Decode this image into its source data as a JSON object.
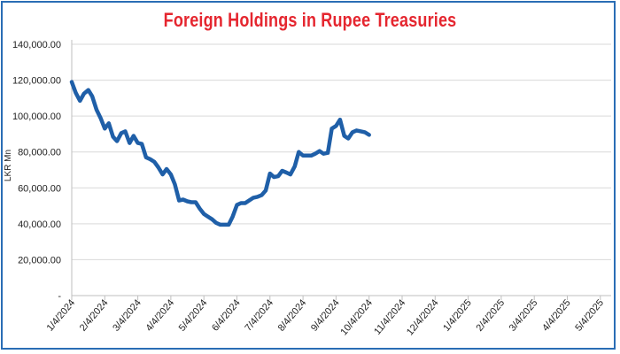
{
  "chart_data": {
    "type": "line",
    "title": "Foreign Holdings in Rupee Treasuries",
    "xlabel": "",
    "ylabel": "LKR Mn",
    "ylim": [
      0,
      140000
    ],
    "y_ticks": [
      0,
      20000,
      40000,
      60000,
      80000,
      100000,
      120000,
      140000
    ],
    "y_tick_labels": [
      "-",
      "20,000.00",
      "40,000.00",
      "60,000.00",
      "80,000.00",
      "100,000.00",
      "120,000.00",
      "140,000.00"
    ],
    "x_tick_labels": [
      "1/4/2024",
      "2/4/2024",
      "3/4/2024",
      "4/4/2024",
      "5/4/2024",
      "6/4/2024",
      "7/4/2024",
      "8/4/2024",
      "9/4/2024",
      "10/4/2024",
      "11/4/2024",
      "12/4/2024",
      "1/4/2025",
      "2/4/2025",
      "3/4/2025",
      "4/4/2025",
      "5/4/2025"
    ],
    "grid": true,
    "line_color": "#1f5fa8",
    "series": [
      {
        "values": [
          [
            0,
            119000
          ],
          [
            0.12,
            113000
          ],
          [
            0.25,
            108500
          ],
          [
            0.37,
            112500
          ],
          [
            0.5,
            114500
          ],
          [
            0.62,
            111000
          ],
          [
            0.75,
            103500
          ],
          [
            0.87,
            99000
          ],
          [
            1.0,
            93000
          ],
          [
            1.12,
            96000
          ],
          [
            1.25,
            88500
          ],
          [
            1.37,
            86000
          ],
          [
            1.5,
            90500
          ],
          [
            1.62,
            91500
          ],
          [
            1.75,
            85000
          ],
          [
            1.87,
            89000
          ],
          [
            2.0,
            85000
          ],
          [
            2.12,
            84500
          ],
          [
            2.25,
            77000
          ],
          [
            2.37,
            76000
          ],
          [
            2.5,
            74500
          ],
          [
            2.62,
            71500
          ],
          [
            2.75,
            67500
          ],
          [
            2.87,
            70500
          ],
          [
            3.0,
            67500
          ],
          [
            3.12,
            62000
          ],
          [
            3.25,
            53000
          ],
          [
            3.37,
            53500
          ],
          [
            3.5,
            52500
          ],
          [
            3.62,
            52000
          ],
          [
            3.75,
            52000
          ],
          [
            3.87,
            48500
          ],
          [
            4.0,
            45500
          ],
          [
            4.12,
            44000
          ],
          [
            4.25,
            42500
          ],
          [
            4.37,
            40500
          ],
          [
            4.5,
            39500
          ],
          [
            4.62,
            39500
          ],
          [
            4.75,
            39500
          ],
          [
            4.87,
            44000
          ],
          [
            5.0,
            50500
          ],
          [
            5.12,
            51500
          ],
          [
            5.25,
            51500
          ],
          [
            5.37,
            53000
          ],
          [
            5.5,
            54500
          ],
          [
            5.62,
            55000
          ],
          [
            5.75,
            56000
          ],
          [
            5.87,
            58500
          ],
          [
            6.0,
            68000
          ],
          [
            6.12,
            66000
          ],
          [
            6.25,
            66500
          ],
          [
            6.37,
            69500
          ],
          [
            6.5,
            68500
          ],
          [
            6.62,
            67500
          ],
          [
            6.75,
            72000
          ],
          [
            6.87,
            80000
          ],
          [
            7.0,
            78000
          ],
          [
            7.12,
            78000
          ],
          [
            7.25,
            78000
          ],
          [
            7.37,
            79000
          ],
          [
            7.5,
            80500
          ],
          [
            7.62,
            79000
          ],
          [
            7.75,
            79500
          ],
          [
            7.87,
            93000
          ],
          [
            8.0,
            94500
          ],
          [
            8.12,
            98000
          ],
          [
            8.25,
            89000
          ],
          [
            8.37,
            87500
          ],
          [
            8.5,
            91000
          ],
          [
            8.62,
            92000
          ],
          [
            8.75,
            91500
          ],
          [
            8.87,
            91000
          ],
          [
            9.0,
            89500
          ]
        ]
      }
    ]
  }
}
